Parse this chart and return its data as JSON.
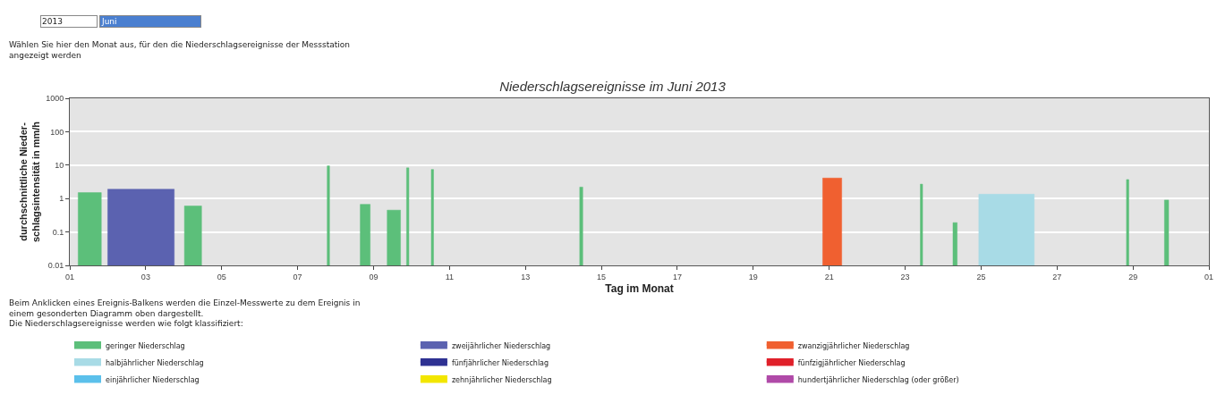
{
  "chart_data": {
    "type": "area",
    "title": "Niederschlagsereignisse im Juni 2013",
    "xlabel": "Tag im Monat",
    "ylabel": "durchschnittliche Nieder-\nschlagsintensität in mm/h",
    "annotations": [
      "2013",
      "Juni",
      "Wählen Sie hier den Monat aus, für den die Niederschlagsereignisse der Messstation\nangezeigt werden",
      "Beim Anklicken eines Ereignis-Balkens werden die Einzel-Messwerte zu dem Ereignis in\neinem gesonderten Diagramm oben dargestellt.\nDie Niederschlagsereignisse werden wie folgt klassifiziert:"
    ],
    "xlim": [
      "2013-06-01",
      "2013-07-01"
    ],
    "xticks": [
      {
        "value": "2013-06-01",
        "label": "01"
      },
      {
        "value": "2013-06-03",
        "label": "03"
      },
      {
        "value": "2013-06-05",
        "label": "05"
      },
      {
        "value": "2013-06-07",
        "label": "07"
      },
      {
        "value": "2013-06-09",
        "label": "09"
      },
      {
        "value": "2013-06-11",
        "label": "11"
      },
      {
        "value": "2013-06-13",
        "label": "13"
      },
      {
        "value": "2013-06-15",
        "label": "15"
      },
      {
        "value": "2013-06-17",
        "label": "17"
      },
      {
        "value": "2013-06-19",
        "label": "19"
      },
      {
        "value": "2013-06-21",
        "label": "21"
      },
      {
        "value": "2013-06-23",
        "label": "23"
      },
      {
        "value": "2013-06-25",
        "label": "25"
      },
      {
        "value": "2013-06-27",
        "label": "27"
      },
      {
        "value": "2013-06-29",
        "label": "29"
      },
      {
        "value": "2013-07-01",
        "label": "01"
      }
    ],
    "ylim": [
      0.01,
      1000
    ],
    "yticks": [
      0.01,
      0.1,
      1,
      10,
      100,
      1000
    ],
    "log": "y",
    "grid": "y",
    "legend": "bottom",
    "series": [
      {
        "name": "geringer Niederschlag",
        "color": "#5cbf7a",
        "x": [
          "2013-06-01T05:17",
          "2013-06-01T19:55",
          null,
          "2013-06-04T00:29",
          "2013-06-04T11:17",
          null,
          "2013-06-07T18:43",
          "2013-06-07T20:10",
          null,
          "2013-06-08T15:36",
          "2013-06-08T21:50",
          null,
          "2013-06-09T08:38",
          "2013-06-09T17:02",
          null,
          "2013-06-09T20:53",
          "2013-06-09T22:19",
          null,
          "2013-06-10T12:29",
          "2013-06-10T13:55",
          null,
          "2013-06-14T10:19",
          "2013-06-14T12:14",
          null,
          "2013-06-23T09:36",
          "2013-06-23T11:02",
          null,
          "2013-06-24T06:14",
          "2013-06-24T08:53",
          null,
          "2013-06-28T19:55",
          "2013-06-28T21:22",
          null,
          "2013-06-29T19:55",
          "2013-06-29T22:34"
        ],
        "values": [
          1.5,
          1.5,
          null,
          0.6,
          0.6,
          null,
          9.5,
          9.5,
          null,
          0.67,
          0.67,
          null,
          0.45,
          0.45,
          null,
          8.3,
          8.3,
          null,
          7.4,
          7.4,
          null,
          2.2,
          2.2,
          null,
          2.7,
          2.7,
          null,
          0.19,
          0.19,
          null,
          3.7,
          3.7,
          null,
          0.9,
          0.9
        ]
      },
      {
        "name": "zweijährlicher Niederschlag",
        "color": "#5b62b0",
        "x": [
          "2013-06-02T00:00",
          "2013-06-03T18:00"
        ],
        "values": [
          1.9,
          1.9
        ]
      },
      {
        "name": "zwanzigjährlicher Niederschlag",
        "color": "#f06030",
        "x": [
          "2013-06-20T19:55",
          "2013-06-21T07:55"
        ],
        "values": [
          4.1,
          4.1
        ]
      },
      {
        "name": "halbjährlicher Niederschlag",
        "color": "#a8dbe6",
        "x": [
          "2013-06-24T22:34",
          "2013-06-26T09:36"
        ],
        "values": [
          1.35,
          1.35
        ]
      },
      {
        "name": "fünfjährlicher Niederschlag",
        "color": "#2e3192"
      },
      {
        "name": "fünfzigjährlicher Niederschlag",
        "color": "#e0202a"
      },
      {
        "name": "einjährlicher Niederschlag",
        "color": "#5bc0eb"
      },
      {
        "name": "zehnjährlicher Niederschlag",
        "color": "#f2e600"
      },
      {
        "name": "hundertjährlicher Niederschlag (oder größer)",
        "color": "#b04aa8"
      }
    ]
  }
}
